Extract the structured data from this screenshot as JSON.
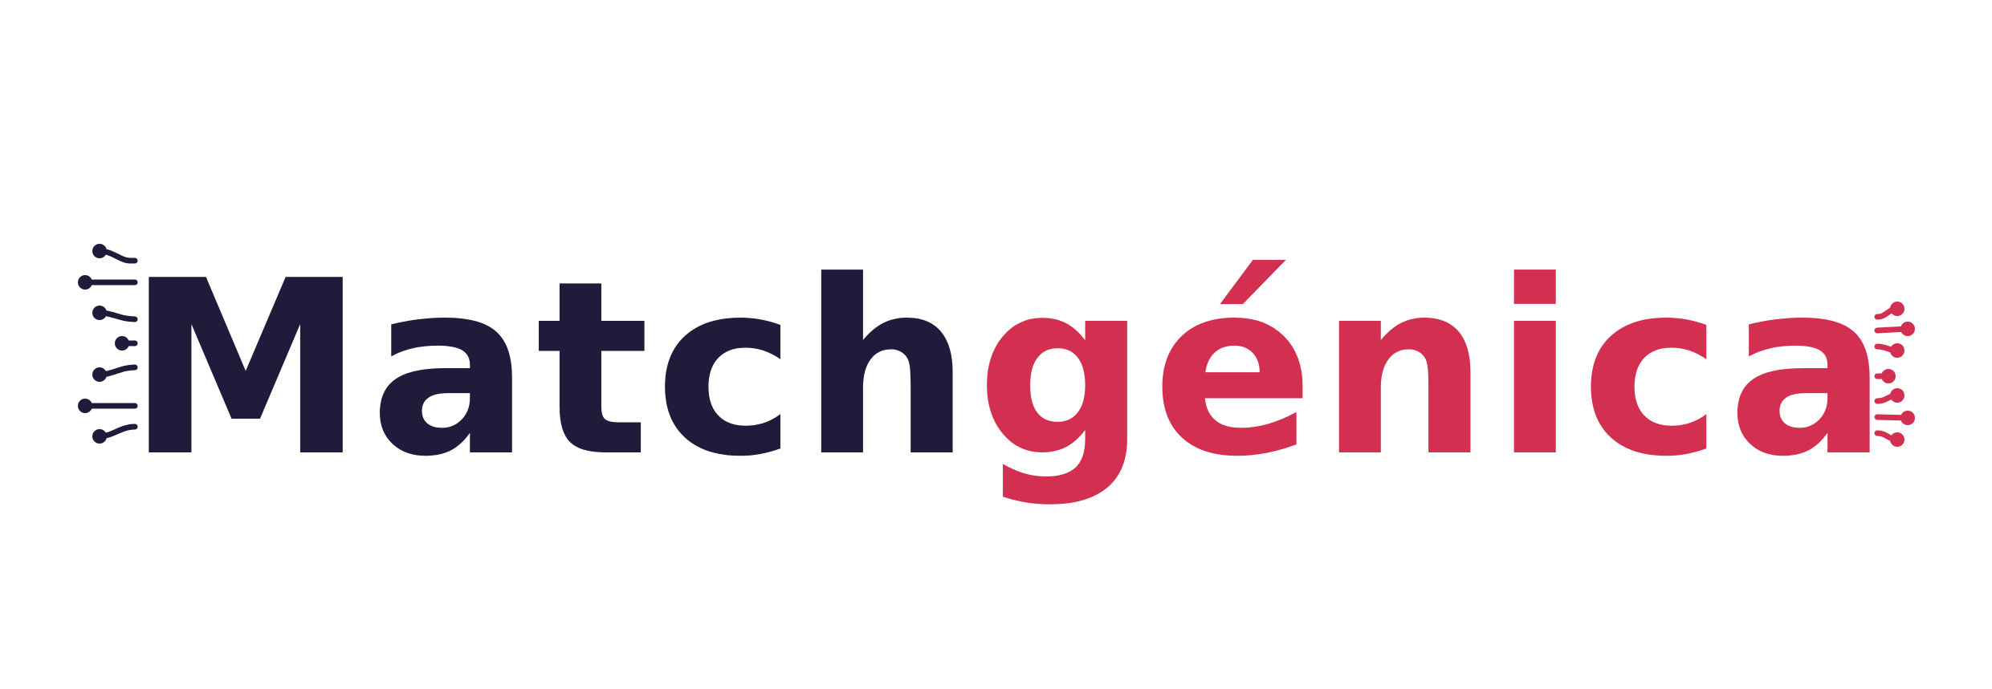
{
  "logo": {
    "part1": "Match",
    "part2": "génica",
    "color_primary": "#1f1c3b",
    "color_accent": "#d32f51"
  }
}
